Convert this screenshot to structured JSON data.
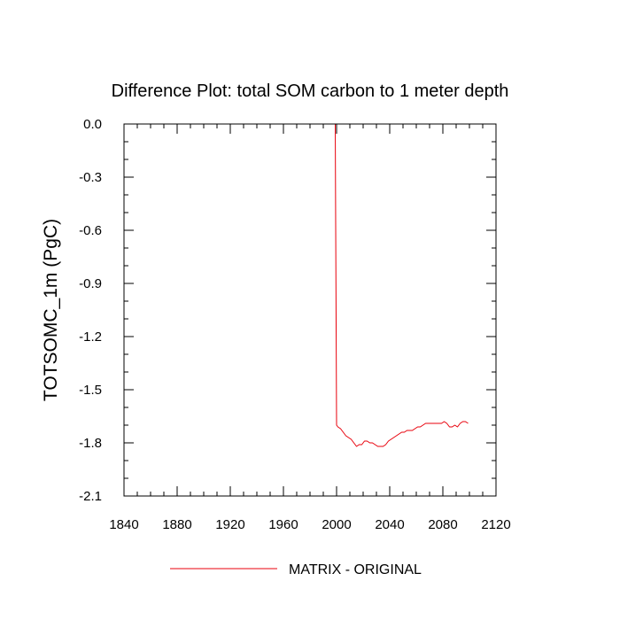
{
  "chart_data": {
    "type": "line",
    "title": "Difference Plot: total SOM carbon to 1 meter depth",
    "xlabel": "",
    "ylabel": "TOTSOMC_1m  (PgC)",
    "xlim": [
      1840,
      2120
    ],
    "ylim": [
      -2.1,
      0.0
    ],
    "x_ticks": [
      1840,
      1880,
      1920,
      1960,
      2000,
      2040,
      2080,
      2120
    ],
    "y_ticks": [
      0.0,
      -0.3,
      -0.6,
      -0.9,
      -1.2,
      -1.5,
      -1.8,
      -2.1
    ],
    "x_tick_labels": [
      "1840",
      "1880",
      "1920",
      "1960",
      "2000",
      "2040",
      "2080",
      "2120"
    ],
    "y_tick_labels": [
      "0.0",
      "-0.3",
      "-0.6",
      "-0.9",
      "-1.2",
      "-1.5",
      "-1.8",
      "-2.1"
    ],
    "legend_position": "bottom-center",
    "grid": false,
    "series": [
      {
        "name": "MATRIX - ORIGINAL",
        "color": "#e8000b",
        "x": [
          1850,
          1900,
          1950,
          1999,
          2000,
          2001,
          2003,
          2005,
          2007,
          2009,
          2011,
          2013,
          2015,
          2017,
          2019,
          2021,
          2023,
          2025,
          2027,
          2029,
          2031,
          2033,
          2035,
          2037,
          2039,
          2041,
          2043,
          2045,
          2047,
          2049,
          2051,
          2053,
          2055,
          2057,
          2059,
          2061,
          2063,
          2065,
          2067,
          2069,
          2071,
          2073,
          2075,
          2077,
          2079,
          2081,
          2083,
          2085,
          2087,
          2089,
          2091,
          2093,
          2095,
          2097,
          2099
        ],
        "y": [
          0.0,
          0.0,
          0.0,
          0.0,
          -1.7,
          -1.71,
          -1.72,
          -1.74,
          -1.76,
          -1.77,
          -1.78,
          -1.8,
          -1.82,
          -1.81,
          -1.81,
          -1.79,
          -1.79,
          -1.8,
          -1.8,
          -1.81,
          -1.82,
          -1.82,
          -1.82,
          -1.81,
          -1.79,
          -1.78,
          -1.77,
          -1.76,
          -1.75,
          -1.74,
          -1.74,
          -1.73,
          -1.73,
          -1.73,
          -1.72,
          -1.71,
          -1.71,
          -1.7,
          -1.69,
          -1.69,
          -1.69,
          -1.69,
          -1.69,
          -1.69,
          -1.69,
          -1.68,
          -1.69,
          -1.71,
          -1.71,
          -1.7,
          -1.71,
          -1.69,
          -1.68,
          -1.68,
          -1.69
        ]
      }
    ]
  }
}
